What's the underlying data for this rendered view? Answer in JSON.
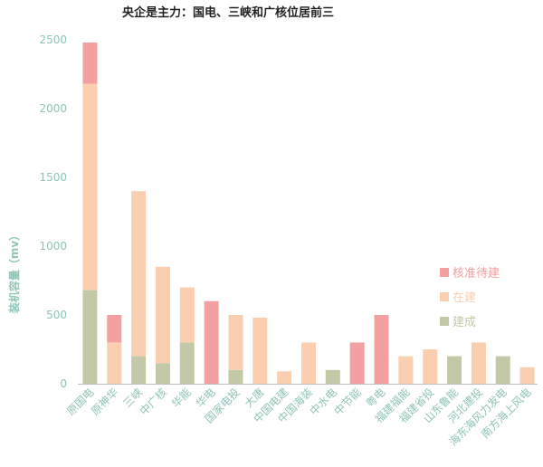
{
  "chart_data": {
    "type": "bar",
    "stacked": true,
    "title": "央企是主力：国电、三峡和广核位居前三",
    "ylabel": "装机容量（mv）",
    "xlabel": "",
    "ylim": [
      0,
      2500
    ],
    "yticks": [
      0,
      500,
      1000,
      1500,
      2000,
      2500
    ],
    "grid": false,
    "legend_position": "right",
    "categories": [
      "原国电",
      "原神华",
      "三峡",
      "中广核",
      "华能",
      "华电",
      "国家电投",
      "大唐",
      "中国电建",
      "中国海装",
      "中水电",
      "中节能",
      "粤电",
      "福建福能",
      "福建省投",
      "山东鲁能",
      "河北建投",
      "海东海风力发电",
      "南方海上风电"
    ],
    "series": [
      {
        "name": "建成",
        "color": "#c3c9a6",
        "values": [
          680,
          0,
          200,
          150,
          300,
          0,
          100,
          0,
          0,
          0,
          100,
          0,
          0,
          0,
          0,
          200,
          0,
          200,
          0
        ]
      },
      {
        "name": "在建",
        "color": "#f9cfb0",
        "values": [
          1500,
          300,
          1200,
          700,
          400,
          0,
          400,
          480,
          90,
          300,
          0,
          0,
          0,
          200,
          250,
          0,
          300,
          0,
          120
        ]
      },
      {
        "name": "核准待建",
        "color": "#f5a0a0",
        "values": [
          300,
          200,
          0,
          0,
          0,
          600,
          0,
          0,
          0,
          0,
          0,
          300,
          500,
          0,
          0,
          0,
          0,
          0,
          0
        ]
      }
    ],
    "legend_order": [
      "核准待建",
      "在建",
      "建成"
    ]
  }
}
